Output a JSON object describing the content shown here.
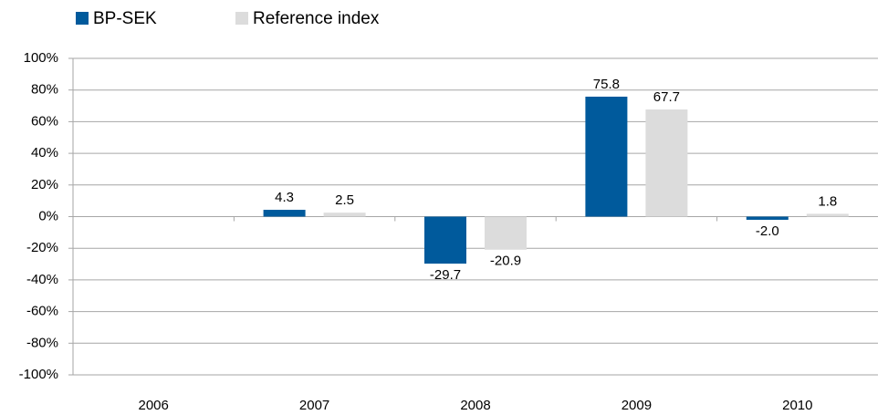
{
  "chart_data": {
    "type": "bar",
    "categories": [
      "2006",
      "2007",
      "2008",
      "2009",
      "2010"
    ],
    "series": [
      {
        "name": "BP-SEK",
        "color": "#005a9c",
        "values": [
          null,
          4.3,
          -29.7,
          75.8,
          -2.0
        ],
        "value_labels": [
          null,
          "4.3",
          "-29.7",
          "75.8",
          "-2.0"
        ]
      },
      {
        "name": "Reference index",
        "color": "#dcdcdc",
        "values": [
          null,
          2.5,
          -20.9,
          67.7,
          1.8
        ],
        "value_labels": [
          null,
          "2.5",
          "-20.9",
          "67.7",
          "1.8"
        ]
      }
    ],
    "ylim": [
      -100,
      100
    ],
    "yticks": [
      {
        "value": -100,
        "label": "-100%"
      },
      {
        "value": -80,
        "label": "-80%"
      },
      {
        "value": -60,
        "label": "-60%"
      },
      {
        "value": -40,
        "label": "-40%"
      },
      {
        "value": -20,
        "label": "-20%"
      },
      {
        "value": 0,
        "label": "0%"
      },
      {
        "value": 20,
        "label": "20%"
      },
      {
        "value": 40,
        "label": "40%"
      },
      {
        "value": 60,
        "label": "60%"
      },
      {
        "value": 80,
        "label": "80%"
      },
      {
        "value": 100,
        "label": "100%"
      }
    ],
    "grid": true,
    "legend": "top-left"
  }
}
